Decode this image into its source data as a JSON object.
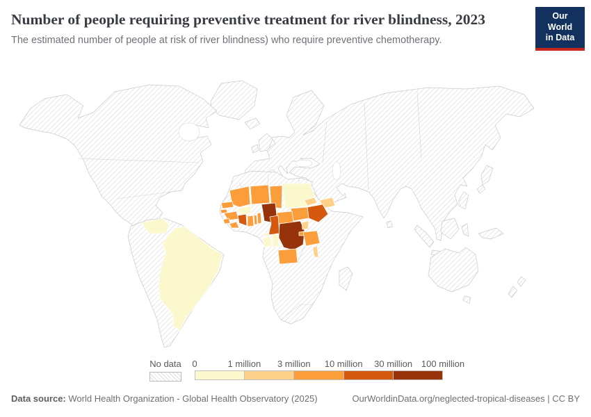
{
  "header": {
    "title": "Number of people requiring preventive treatment for river blindness, 2023",
    "subtitle": "The estimated number of people at risk of river blindness) who require preventive chemotherapy.",
    "logo": {
      "line1": "Our World",
      "line2": "in Data",
      "bg_color": "#12315e",
      "accent_color": "#c5271c"
    }
  },
  "legend": {
    "no_data_label": "No data",
    "ticks": [
      "0",
      "1 million",
      "3 million",
      "10 million",
      "30 million",
      "100 million"
    ],
    "colors": [
      "#fbf8ce",
      "#fdd189",
      "#fa9d3a",
      "#d4590f",
      "#96330b"
    ]
  },
  "footer": {
    "source_label": "Data source:",
    "source_text": "World Health Organization - Global Health Observatory (2025)",
    "attribution": "OurWorldinData.org/neglected-tropical-diseases | CC BY"
  },
  "chart_data": {
    "type": "choropleth-world-map",
    "title": "Number of people requiring preventive treatment for river blindness",
    "year": 2023,
    "unit": "people requiring preventive chemotherapy",
    "legend_position": "bottom",
    "no_data_style": "gray diagonal hatching",
    "color_scale": {
      "0 to 1 million": "#fbf8ce",
      "1 to 3 million": "#fdd189",
      "3 to 10 million": "#fa9d3a",
      "10 to 30 million": "#d4590f",
      "30 to 100 million": "#96330b"
    },
    "countries": {
      "Venezuela": "0 to 1 million",
      "Brazil": "0 to 1 million",
      "Mali": "3 to 10 million",
      "Niger": "3 to 10 million",
      "Chad": "3 to 10 million",
      "Sudan": "0 to 1 million",
      "Eritrea": "1 to 3 million",
      "Yemen": "1 to 3 million",
      "Ethiopia": "10 to 30 million",
      "South Sudan": "3 to 10 million",
      "Central African Republic": "3 to 10 million",
      "Senegal": "3 to 10 million",
      "Guinea-Bissau": "3 to 10 million",
      "Guinea": "3 to 10 million",
      "Sierra Leone": "3 to 10 million",
      "Liberia": "3 to 10 million",
      "Cote d'Ivoire": "10 to 30 million",
      "Ghana": "3 to 10 million",
      "Togo": "3 to 10 million",
      "Benin": "3 to 10 million",
      "Burkina Faso": "0 to 1 million",
      "Nigeria": "30 to 100 million",
      "Cameroon": "10 to 30 million",
      "Equatorial Guinea": "0 to 1 million",
      "Gabon": "0 to 1 million",
      "Congo": "0 to 1 million",
      "Democratic Republic of Congo": "30 to 100 million",
      "Uganda": "1 to 3 million",
      "Burundi": "3 to 10 million",
      "Tanzania": "3 to 10 million",
      "Malawi": "1 to 3 million",
      "Angola": "3 to 10 million"
    },
    "all_other_countries": "No data"
  }
}
